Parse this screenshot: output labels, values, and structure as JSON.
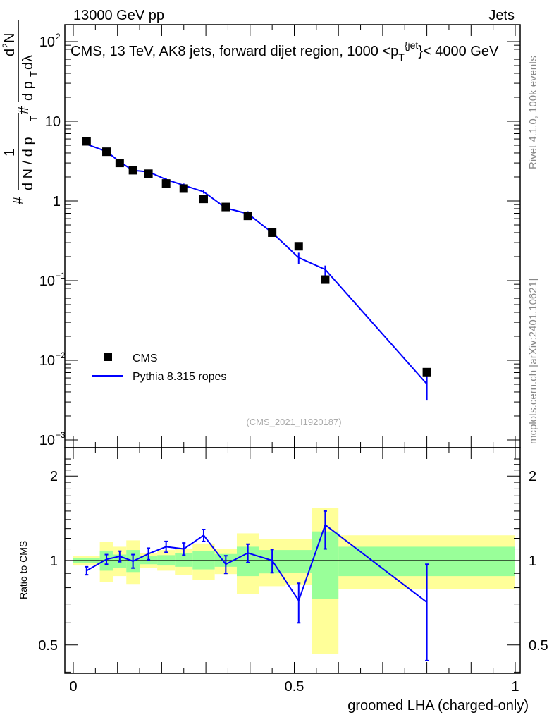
{
  "chart_data": [
    {
      "type": "scatter",
      "panel": "main",
      "title": "CMS, 13 TeV, AK8 jets, forward dijet region, 1000 <p_T^{jet}< 4000 GeV",
      "title_parts": {
        "pre": "CMS, 13 TeV, AK8 jets, forward dijet region, 1000 <p",
        "sub": "T",
        "sup": "{jet",
        "post": "}< 4000 GeV"
      },
      "top_left": "13000 GeV pp",
      "top_right": "Jets",
      "ylabel_parts": {
        "frac1_num": "1",
        "frac1_den": "d N / d p",
        "frac1_den_sub": "T",
        "hash1": "#",
        "hash2": "#",
        "frac2_num": "d",
        "frac2_num_sup": "2",
        "frac2_num_post": "N",
        "frac2_den": "d p",
        "frac2_den_sub": "T",
        "frac2_den_post": " dλ"
      },
      "yscale": "log",
      "ylim": [
        0.0008,
        160
      ],
      "yticks": [
        {
          "value": 0.001,
          "base": "10",
          "exp": "−3"
        },
        {
          "value": 0.01,
          "base": "10",
          "exp": "−2"
        },
        {
          "value": 0.1,
          "base": "10",
          "exp": "−1"
        },
        {
          "value": 1,
          "base": "1",
          "exp": ""
        },
        {
          "value": 10,
          "base": "10",
          "exp": ""
        },
        {
          "value": 100,
          "base": "10",
          "exp": "2"
        }
      ],
      "x": [
        0.03,
        0.075,
        0.105,
        0.135,
        0.17,
        0.21,
        0.25,
        0.295,
        0.345,
        0.395,
        0.45,
        0.51,
        0.57,
        0.8
      ],
      "series": [
        {
          "name": "CMS",
          "style": "marker",
          "color": "#000000",
          "values": [
            5.6,
            4.15,
            3.0,
            2.43,
            2.2,
            1.66,
            1.43,
            1.06,
            0.84,
            0.65,
            0.4,
            0.27,
            0.103,
            0.0071
          ]
        },
        {
          "name": "Pythia 8.315 ropes",
          "style": "line",
          "color": "#0000ff",
          "ratio_to_cms": [
            0.92,
            1.01,
            1.035,
            0.995,
            1.057,
            1.12,
            1.1,
            1.23,
            0.97,
            1.064,
            1.0,
            0.72,
            1.34,
            0.71
          ]
        }
      ],
      "legend": {
        "placement": "bottom-left",
        "entries": [
          "CMS",
          "Pythia 8.315 ropes"
        ]
      },
      "watermark": "(CMS_2021_I1920187)",
      "side_top": "Rivet 4.1.0,  100k events",
      "side_bottom": "mcplots.cern.ch [arXiv:2401.10621]"
    },
    {
      "type": "line",
      "panel": "ratio",
      "ylabel": "Ratio to CMS",
      "xlabel": "groomed LHA (charged-only)",
      "xlim": [
        0,
        1
      ],
      "xticks": [
        {
          "value": 0,
          "label": "0"
        },
        {
          "value": 0.5,
          "label": "0.5"
        },
        {
          "value": 1,
          "label": "1"
        }
      ],
      "yscale": "log",
      "ylim": [
        0.4,
        2.3
      ],
      "yticks": [
        {
          "value": 0.5,
          "label": "0.5"
        },
        {
          "value": 1,
          "label": "1"
        },
        {
          "value": 2,
          "label": "2"
        }
      ],
      "bin_edges": [
        0,
        0.06,
        0.09,
        0.12,
        0.15,
        0.19,
        0.23,
        0.27,
        0.32,
        0.37,
        0.42,
        0.48,
        0.54,
        0.6,
        1.0
      ],
      "band_inner": {
        "color": "#99ff99",
        "lo": [
          0.98,
          0.92,
          0.94,
          0.91,
          0.97,
          0.96,
          0.95,
          0.93,
          0.95,
          0.88,
          0.9,
          0.905,
          0.73,
          0.88
        ],
        "hi": [
          1.02,
          1.085,
          1.05,
          1.09,
          1.035,
          1.045,
          1.06,
          1.08,
          1.055,
          1.12,
          1.09,
          1.09,
          1.27,
          1.12
        ]
      },
      "band_outer": {
        "color": "#ffff99",
        "lo": [
          0.96,
          0.84,
          0.88,
          0.825,
          0.94,
          0.92,
          0.89,
          0.855,
          0.895,
          0.76,
          0.81,
          0.82,
          0.466,
          0.79
        ],
        "hi": [
          1.04,
          1.165,
          1.12,
          1.18,
          1.065,
          1.09,
          1.1,
          1.15,
          1.1,
          1.25,
          1.19,
          1.19,
          1.54,
          1.23
        ]
      },
      "ratio": [
        0.92,
        1.01,
        1.035,
        0.995,
        1.057,
        1.12,
        1.1,
        1.23,
        0.97,
        1.064,
        1.0,
        0.72,
        1.34,
        0.71
      ],
      "ratio_lo": [
        0.89,
        0.97,
        0.99,
        0.94,
        1.007,
        1.07,
        1.045,
        1.17,
        0.9,
        0.984,
        0.905,
        0.6,
        1.1,
        0.44
      ],
      "ratio_hi": [
        0.95,
        1.05,
        1.08,
        1.05,
        1.107,
        1.17,
        1.155,
        1.29,
        1.04,
        1.144,
        1.095,
        0.83,
        1.5,
        0.97
      ]
    }
  ]
}
